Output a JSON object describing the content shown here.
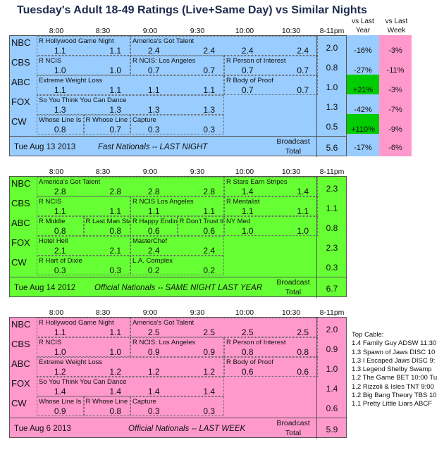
{
  "title": "Tuesday's Adult 18-49 Ratings (Live+Same Day) vs Similar Nights",
  "time_labels": [
    "8:00",
    "8:30",
    "9:00",
    "9:30",
    "10:00",
    "10:30",
    "8-11pm"
  ],
  "compare_headers": {
    "vs_last_year": "vs Last\nYear",
    "vs_last_week": "vs Last\nWeek"
  },
  "broadcast_total": "Broadcast\nTotal",
  "panels": [
    {
      "id": "tonight",
      "color": "#99ccff",
      "footer_date": "Tue Aug 13 2013",
      "footer_label": "Fast Nationals -- LAST NIGHT",
      "total": "5.6",
      "total_vs_year": "-17%",
      "total_vs_week": "-6%",
      "rows": [
        {
          "net": "NBC",
          "shows": [
            {
              "n": "R Hollywood Game Night",
              "s": 0,
              "e": 2
            },
            {
              "n": "America's Got Talent",
              "s": 2,
              "e": 6
            }
          ],
          "vals": [
            "1.1",
            "1.1",
            "2.4",
            "2.4",
            "2.4",
            "2.4"
          ],
          "total": "2.0",
          "vy": "-16%",
          "vw": "-3%"
        },
        {
          "net": "CBS",
          "shows": [
            {
              "n": "R NCIS",
              "s": 0,
              "e": 2
            },
            {
              "n": "R NCIS: Los Angeles",
              "s": 2,
              "e": 4
            },
            {
              "n": "R Person of Interest",
              "s": 4,
              "e": 6
            }
          ],
          "vals": [
            "1.0",
            "1.0",
            "0.7",
            "0.7",
            "0.7",
            "0.7"
          ],
          "total": "0.8",
          "vy": "-27%",
          "vw": "-11%"
        },
        {
          "net": "ABC",
          "shows": [
            {
              "n": "Extreme Weight Loss",
              "s": 0,
              "e": 4
            },
            {
              "n": "R Body of Proof",
              "s": 4,
              "e": 6
            }
          ],
          "vals": [
            "1.1",
            "1.1",
            "1.1",
            "1.1",
            "0.7",
            "0.7"
          ],
          "total": "1.0",
          "vy": "+21%",
          "vw": "-3%"
        },
        {
          "net": "FOX",
          "shows": [
            {
              "n": "So You Think You Can Dance",
              "s": 0,
              "e": 4
            }
          ],
          "vals": [
            "1.3",
            "1.3",
            "1.3",
            "1.3",
            "",
            ""
          ],
          "total": "1.3",
          "vy": "-42%",
          "vw": "-7%"
        },
        {
          "net": "CW",
          "shows": [
            {
              "n": "Whose Line Is It Anyway",
              "s": 0,
              "e": 1
            },
            {
              "n": "R Whose Line Is It Anyway",
              "s": 1,
              "e": 2
            },
            {
              "n": "Capture",
              "s": 2,
              "e": 4
            }
          ],
          "vals": [
            "0.8",
            "0.7",
            "0.3",
            "0.3",
            "",
            ""
          ],
          "total": "0.5",
          "vy": "+110%",
          "vw": "-9%"
        }
      ]
    },
    {
      "id": "lastyear",
      "color": "#66ff33",
      "footer_date": "Tue Aug 14 2012",
      "footer_label": "Official Nationals -- SAME NIGHT LAST YEAR",
      "total": "6.7",
      "rows": [
        {
          "net": "NBC",
          "shows": [
            {
              "n": "America's Got Talent",
              "s": 0,
              "e": 4
            },
            {
              "n": "R Stars Earn Stripes",
              "s": 4,
              "e": 6
            }
          ],
          "vals": [
            "2.8",
            "2.8",
            "2.8",
            "2.8",
            "1.4",
            "1.4"
          ],
          "total": "2.3"
        },
        {
          "net": "CBS",
          "shows": [
            {
              "n": "R NCIS",
              "s": 0,
              "e": 2
            },
            {
              "n": "R NCIS Los Angeles",
              "s": 2,
              "e": 4
            },
            {
              "n": "R Mentalist",
              "s": 4,
              "e": 6
            }
          ],
          "vals": [
            "1.1",
            "1.1",
            "1.1",
            "1.1",
            "1.1",
            "1.1"
          ],
          "total": "1.1"
        },
        {
          "net": "ABC",
          "shows": [
            {
              "n": "R Middle",
              "s": 0,
              "e": 1
            },
            {
              "n": "R Last Man Standing",
              "s": 1,
              "e": 2
            },
            {
              "n": "R Happy Endings",
              "s": 2,
              "e": 3
            },
            {
              "n": "R Don't Trust the B",
              "s": 3,
              "e": 4
            },
            {
              "n": "NY Med",
              "s": 4,
              "e": 6
            }
          ],
          "vals": [
            "0.8",
            "0.8",
            "0.6",
            "0.6",
            "1.0",
            "1.0"
          ],
          "total": "0.8"
        },
        {
          "net": "FOX",
          "shows": [
            {
              "n": "Hotel Hell",
              "s": 0,
              "e": 2
            },
            {
              "n": "MasterChef",
              "s": 2,
              "e": 4
            }
          ],
          "vals": [
            "2.1",
            "2.1",
            "2.4",
            "2.4",
            "",
            ""
          ],
          "total": "2.3"
        },
        {
          "net": "CW",
          "shows": [
            {
              "n": "R Hart of Dixie",
              "s": 0,
              "e": 2
            },
            {
              "n": "L.A. Complex",
              "s": 2,
              "e": 4
            }
          ],
          "vals": [
            "0.3",
            "0.3",
            "0.2",
            "0.2",
            "",
            ""
          ],
          "total": "0.3"
        }
      ]
    },
    {
      "id": "lastweek",
      "color": "#ff99cc",
      "footer_date": "Tue Aug 6 2013",
      "footer_label": "Official Nationals -- LAST WEEK",
      "total": "5.9",
      "rows": [
        {
          "net": "NBC",
          "shows": [
            {
              "n": "R Hollywood Game Night",
              "s": 0,
              "e": 2
            },
            {
              "n": "America's Got Talent",
              "s": 2,
              "e": 6
            }
          ],
          "vals": [
            "1.1",
            "1.1",
            "2.5",
            "2.5",
            "2.5",
            "2.5"
          ],
          "total": "2.0"
        },
        {
          "net": "CBS",
          "shows": [
            {
              "n": "R NCIS",
              "s": 0,
              "e": 2
            },
            {
              "n": "R NCIS: Los Angeles",
              "s": 2,
              "e": 4
            },
            {
              "n": "R Person of Interest",
              "s": 4,
              "e": 6
            }
          ],
          "vals": [
            "1.0",
            "1.0",
            "0.9",
            "0.9",
            "0.8",
            "0.8"
          ],
          "total": "0.9"
        },
        {
          "net": "ABC",
          "shows": [
            {
              "n": "Extreme Weight Loss",
              "s": 0,
              "e": 4
            },
            {
              "n": "R Body of Proof",
              "s": 4,
              "e": 6
            }
          ],
          "vals": [
            "1.2",
            "1.2",
            "1.2",
            "1.2",
            "0.6",
            "0.6"
          ],
          "total": "1.0"
        },
        {
          "net": "FOX",
          "shows": [
            {
              "n": "So You Think You Can Dance",
              "s": 0,
              "e": 4
            }
          ],
          "vals": [
            "1.4",
            "1.4",
            "1.4",
            "1.4",
            "",
            ""
          ],
          "total": "1.4"
        },
        {
          "net": "CW",
          "shows": [
            {
              "n": "Whose Line Is It Anyway",
              "s": 0,
              "e": 1
            },
            {
              "n": "R Whose Line Is It Anyway",
              "s": 1,
              "e": 2
            },
            {
              "n": "Capture",
              "s": 2,
              "e": 4
            }
          ],
          "vals": [
            "0.9",
            "0.8",
            "0.3",
            "0.3",
            "",
            ""
          ],
          "total": "0.6"
        }
      ]
    }
  ],
  "top_cable": {
    "header": "Top Cable:",
    "items": [
      "1.4 Family Guy ADSW 11:30",
      "1.3 Spawn of Jaws DISC 10",
      "1.3 I Escaped Jaws DISC 9:",
      "1.3 Legend Shelby Swamp",
      "1.2 The Game BET 10:00 Tu",
      "1.2 Rizzoli & Isles TNT 9:00",
      "1.2 Big Bang Theory TBS 10",
      "1.1 Pretty Little Liars ABCF"
    ]
  },
  "colors": {
    "gain": "#00cc00",
    "loss": "#ff99cc",
    "grid": "#555555"
  }
}
